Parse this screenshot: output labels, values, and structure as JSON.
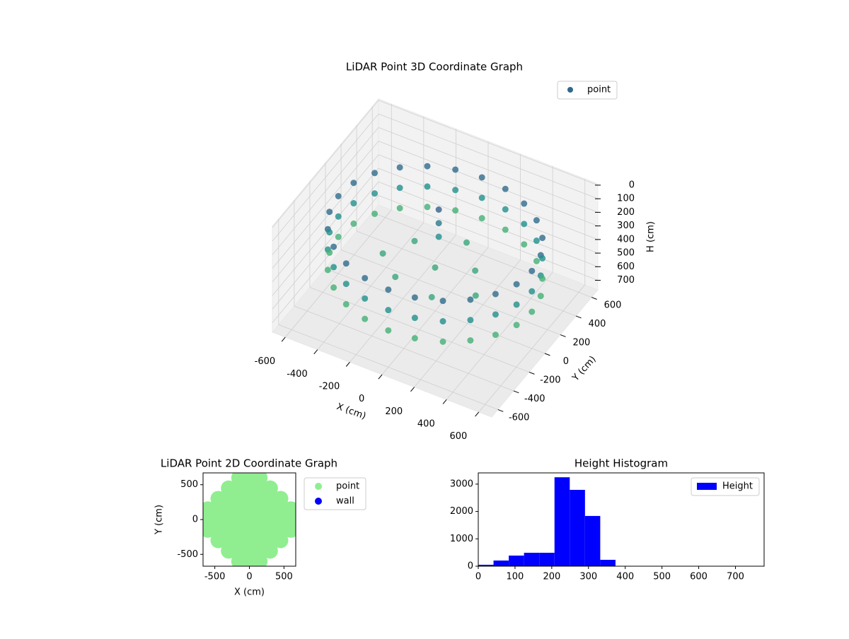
{
  "chart_data": [
    {
      "type": "scatter3d",
      "title": "LiDAR Point 3D Coordinate Graph",
      "xlabel": "X (cm)",
      "ylabel": "Y (cm)",
      "zlabel": "H (cm)",
      "xlim": [
        -680,
        680
      ],
      "ylim": [
        -680,
        680
      ],
      "zlim": [
        770,
        -10
      ],
      "xticks": [
        -600,
        -400,
        -200,
        0,
        200,
        400,
        600
      ],
      "yticks": [
        -600,
        -400,
        -200,
        0,
        200,
        400,
        600
      ],
      "zticks": [
        0,
        100,
        200,
        300,
        400,
        500,
        600,
        700
      ],
      "colormap": "viridis",
      "legend": "upper right",
      "grid": true,
      "series": [
        {
          "name": "point",
          "color": "#31688e",
          "x": [
            600,
            580,
            520,
            424,
            300,
            155,
            0,
            -155,
            -300,
            -424,
            -520,
            -580,
            -600,
            -580,
            -520,
            -424,
            -300,
            -155,
            0,
            155,
            300,
            424,
            520,
            580,
            600,
            580,
            520,
            424,
            300,
            155,
            0,
            -155,
            -300,
            -424,
            -520,
            -580,
            -600,
            -580,
            -520,
            -424,
            -300,
            -155,
            0,
            155,
            300,
            424,
            520,
            580,
            600,
            580,
            520,
            424,
            300,
            155,
            0,
            -155,
            -300,
            -424,
            -520,
            -580,
            -600,
            -580,
            -520,
            -424,
            -300,
            -155,
            0,
            155,
            300,
            424,
            520,
            580,
            0,
            200,
            -200,
            100,
            -150,
            300,
            -300,
            50,
            -50,
            -50,
            -50
          ],
          "y": [
            0,
            155,
            300,
            424,
            520,
            580,
            600,
            580,
            520,
            424,
            300,
            155,
            0,
            -155,
            -300,
            -424,
            -520,
            -580,
            -600,
            -580,
            -520,
            -424,
            -300,
            -155,
            0,
            155,
            300,
            424,
            520,
            580,
            600,
            580,
            520,
            424,
            300,
            155,
            0,
            -155,
            -300,
            -424,
            -520,
            -580,
            -600,
            -580,
            -520,
            -424,
            -300,
            -155,
            0,
            155,
            300,
            424,
            520,
            580,
            600,
            580,
            520,
            424,
            300,
            155,
            0,
            -155,
            -300,
            -424,
            -520,
            -580,
            -600,
            -580,
            -520,
            -424,
            -300,
            -155,
            0,
            100,
            150,
            -250,
            -200,
            -100,
            -50,
            300,
            150,
            150,
            150
          ],
          "z": [
            200,
            200,
            200,
            200,
            200,
            200,
            200,
            200,
            200,
            200,
            200,
            200,
            200,
            200,
            200,
            200,
            200,
            200,
            200,
            200,
            200,
            200,
            200,
            200,
            350,
            350,
            350,
            350,
            350,
            350,
            350,
            350,
            350,
            350,
            350,
            350,
            350,
            350,
            350,
            350,
            350,
            350,
            350,
            350,
            350,
            350,
            350,
            350,
            500,
            500,
            500,
            500,
            500,
            500,
            500,
            500,
            500,
            500,
            500,
            500,
            500,
            500,
            500,
            500,
            500,
            500,
            500,
            500,
            500,
            500,
            500,
            500,
            450,
            450,
            450,
            450,
            450,
            450,
            450,
            450,
            150,
            250,
            350
          ]
        }
      ]
    },
    {
      "type": "scatter",
      "title": "LiDAR Point 2D Coordinate Graph",
      "xlabel": "X (cm)",
      "ylabel": "Y (cm)",
      "xlim": [
        -670,
        670
      ],
      "ylim": [
        -670,
        670
      ],
      "xticks": [
        -500,
        0,
        500
      ],
      "yticks": [
        -500,
        0,
        500
      ],
      "legend": "outside upper right",
      "series": [
        {
          "name": "point",
          "color": "#90ee90",
          "x": [
            -600,
            -600,
            -600,
            -450,
            -450,
            -450,
            -450,
            -450,
            -300,
            -300,
            -300,
            -300,
            -300,
            -300,
            -300,
            -150,
            -150,
            -150,
            -150,
            -150,
            -150,
            -150,
            -150,
            -150,
            0,
            0,
            0,
            0,
            0,
            0,
            0,
            0,
            0,
            150,
            150,
            150,
            150,
            150,
            150,
            150,
            150,
            150,
            300,
            300,
            300,
            300,
            300,
            300,
            300,
            450,
            450,
            450,
            450,
            450,
            600,
            600,
            600
          ],
          "y": [
            -150,
            0,
            150,
            -300,
            -150,
            0,
            150,
            300,
            -450,
            -300,
            -150,
            0,
            150,
            300,
            450,
            -600,
            -450,
            -300,
            -150,
            0,
            150,
            300,
            450,
            600,
            -600,
            -450,
            -300,
            -150,
            0,
            150,
            300,
            450,
            600,
            -600,
            -450,
            -300,
            -150,
            0,
            150,
            300,
            450,
            600,
            -450,
            -300,
            -150,
            0,
            150,
            300,
            450,
            -300,
            -150,
            0,
            150,
            300,
            -150,
            0,
            150
          ]
        },
        {
          "name": "wall",
          "color": "#0000ff",
          "x": [],
          "y": []
        }
      ]
    },
    {
      "type": "histogram",
      "title": "Height Histogram",
      "bins": [
        0,
        41.5,
        83,
        124.5,
        166,
        207.5,
        249,
        290.5,
        332,
        373.5,
        415,
        456.5,
        498,
        539.5,
        581,
        622.5,
        664,
        705.5,
        747
      ],
      "xlim": [
        0,
        778
      ],
      "ylim": [
        0,
        3410
      ],
      "xticks": [
        0,
        100,
        200,
        300,
        400,
        500,
        600,
        700
      ],
      "yticks": [
        0,
        1000,
        2000,
        3000
      ],
      "legend": "upper right",
      "series": [
        {
          "name": "Height",
          "color": "#0000ff",
          "values": [
            52,
            207,
            388,
            491,
            491,
            3250,
            2790,
            1836,
            233,
            0,
            0,
            0,
            0,
            0,
            0,
            0,
            0,
            0
          ]
        }
      ]
    }
  ]
}
